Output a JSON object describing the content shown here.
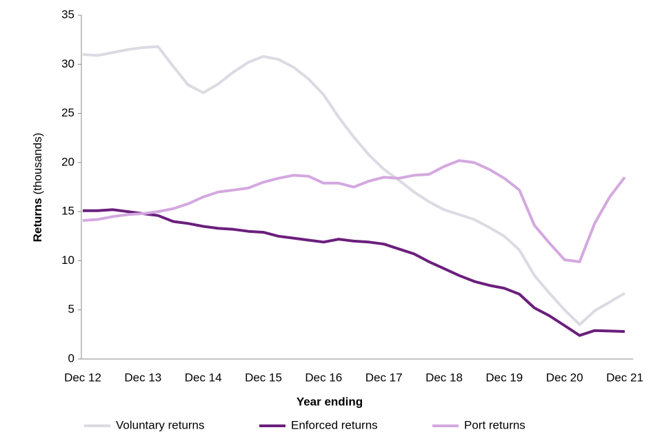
{
  "chart_data": {
    "type": "line",
    "x_label": "Year ending",
    "y_label": {
      "text": "Returns",
      "unit": "(thousands)"
    },
    "categories": [
      "Dec 12",
      null,
      null,
      null,
      "Dec 13",
      null,
      null,
      null,
      "Dec 14",
      null,
      null,
      null,
      "Dec 15",
      null,
      null,
      null,
      "Dec 16",
      null,
      null,
      null,
      "Dec 17",
      null,
      null,
      null,
      "Dec 18",
      null,
      null,
      null,
      "Dec 19",
      null,
      null,
      null,
      "Dec 20",
      null,
      null,
      null,
      "Dec 21"
    ],
    "series": [
      {
        "name": "Voluntary returns",
        "color": "#dcdae2",
        "values": [
          31.0,
          30.9,
          31.2,
          31.5,
          31.7,
          31.8,
          29.8,
          27.9,
          27.1,
          28.0,
          29.2,
          30.2,
          30.8,
          30.5,
          29.7,
          28.5,
          26.9,
          24.6,
          22.6,
          20.8,
          19.3,
          18.2,
          17.0,
          16.0,
          15.2,
          14.7,
          14.2,
          13.4,
          12.5,
          11.1,
          8.5,
          6.7,
          5.0,
          3.5,
          4.9,
          5.8,
          6.7
        ]
      },
      {
        "name": "Enforced returns",
        "color": "#6b1f7c",
        "values": [
          15.1,
          15.1,
          15.2,
          15.0,
          14.8,
          14.6,
          14.0,
          13.8,
          13.5,
          13.3,
          13.2,
          13.0,
          12.9,
          12.5,
          12.3,
          12.1,
          11.9,
          12.2,
          12.0,
          11.9,
          11.7,
          11.2,
          10.7,
          9.9,
          9.2,
          8.5,
          7.9,
          7.5,
          7.2,
          6.6,
          5.2,
          4.4,
          3.4,
          2.4,
          2.9,
          2.85,
          2.8
        ]
      },
      {
        "name": "Port returns",
        "color": "#d4a8e0",
        "values": [
          14.1,
          14.2,
          14.5,
          14.7,
          14.8,
          15.0,
          15.3,
          15.8,
          16.5,
          17.0,
          17.2,
          17.4,
          18.0,
          18.4,
          18.7,
          18.6,
          17.9,
          17.9,
          17.5,
          18.1,
          18.5,
          18.4,
          18.7,
          18.8,
          19.6,
          20.2,
          20.0,
          19.3,
          18.4,
          17.2,
          13.6,
          11.8,
          10.1,
          9.9,
          13.8,
          16.5,
          18.5
        ]
      }
    ],
    "ylim": [
      0,
      35
    ],
    "yticks": [
      0,
      5,
      10,
      15,
      20,
      25,
      30,
      35
    ],
    "grid": false,
    "legend": "bottom"
  }
}
